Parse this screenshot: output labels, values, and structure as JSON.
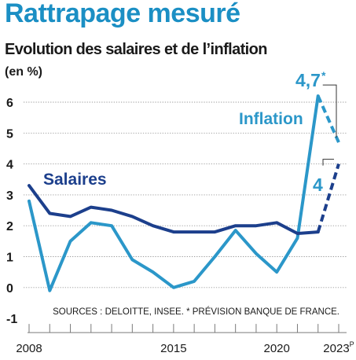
{
  "title": "Rattrapage mesuré",
  "subtitle": "Evolution des salaires et de l’inflation",
  "unit": "(en %)",
  "source": "SOURCES : DELOITTE, INSEE. * PRÉVISION BANQUE DE FRANCE.",
  "colors": {
    "salaires": "#1c3f8c",
    "inflation": "#2b97c9",
    "grid": "#9a9a9a",
    "text": "#1a1a1a"
  },
  "chart_data": {
    "type": "line",
    "x": [
      2008,
      2009,
      2010,
      2011,
      2012,
      2013,
      2014,
      2015,
      2016,
      2017,
      2018,
      2019,
      2020,
      2021,
      2022,
      2023
    ],
    "x_tick_labels": [
      {
        "x": 2008,
        "label": "2008"
      },
      {
        "x": 2015,
        "label": "2015"
      },
      {
        "x": 2020,
        "label": "2020"
      },
      {
        "x": 2023,
        "label": "2023",
        "sup": "P"
      }
    ],
    "y_ticks": [
      6,
      5,
      4,
      3,
      2,
      1,
      0,
      -1
    ],
    "ylim": [
      -1,
      6
    ],
    "grid": "horizontal",
    "forecast_from": 2022,
    "series": [
      {
        "name": "Salaires",
        "key": "salaires",
        "values": [
          3.3,
          2.4,
          2.3,
          2.6,
          2.5,
          2.3,
          2.0,
          1.8,
          1.8,
          1.8,
          2.0,
          2.0,
          2.1,
          1.75,
          1.8,
          4.0
        ],
        "end_label": "4"
      },
      {
        "name": "Inflation",
        "key": "inflation",
        "values": [
          2.8,
          -0.1,
          1.5,
          2.1,
          2.0,
          0.9,
          0.5,
          0.0,
          0.2,
          1.0,
          1.85,
          1.1,
          0.5,
          1.6,
          6.2,
          4.7
        ],
        "end_label": "4,7",
        "end_label_mark": "*"
      }
    ]
  }
}
